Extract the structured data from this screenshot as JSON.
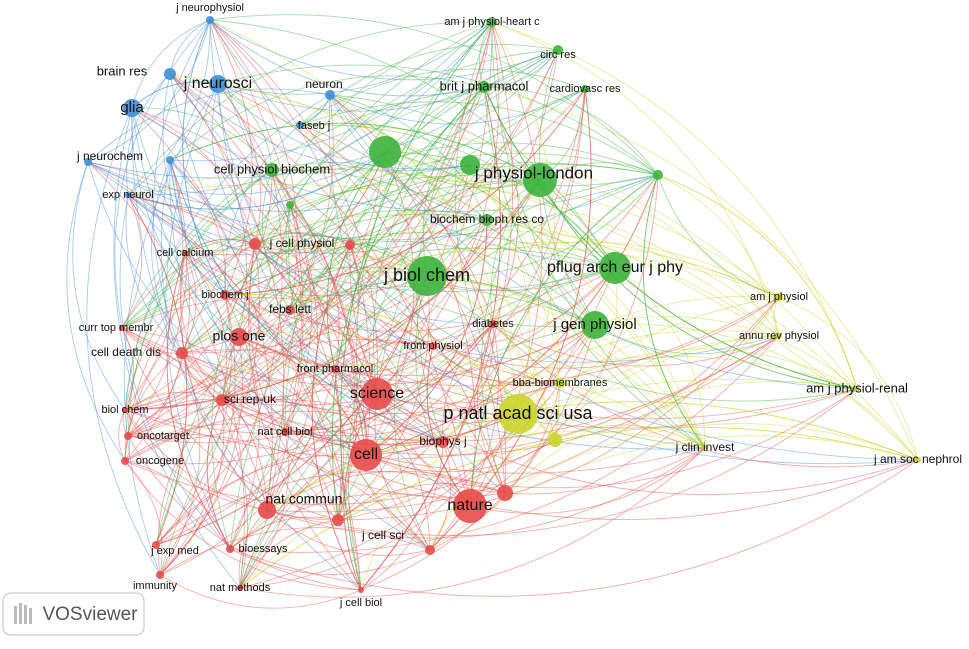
{
  "nodes": [
    {
      "label": "j neurophysiol"
    },
    {
      "label": "am j physiol-heart c"
    },
    {
      "label": "circ res"
    },
    {
      "label": "brain res"
    },
    {
      "label": "j neurosci"
    },
    {
      "label": "neuron"
    },
    {
      "label": "brit j pharmacol"
    },
    {
      "label": "cardiovasc res"
    },
    {
      "label": "glia"
    },
    {
      "label": "faseb j"
    },
    {
      "label": "j neurochem"
    },
    {
      "label": "cell physiol biochem"
    },
    {
      "label": "j physiol-london"
    },
    {
      "label": "exp neurol"
    },
    {
      "label": "biochem bioph res co"
    },
    {
      "label": "cell calcium"
    },
    {
      "label": "j cell physiol"
    },
    {
      "label": "j biol chem"
    },
    {
      "label": "pflug arch eur j phy"
    },
    {
      "label": "biochem j"
    },
    {
      "label": "febs lett"
    },
    {
      "label": "am j physiol"
    },
    {
      "label": "curr top membr"
    },
    {
      "label": "diabetes"
    },
    {
      "label": "j gen physiol"
    },
    {
      "label": "annu rev physiol"
    },
    {
      "label": "plos one"
    },
    {
      "label": "front physiol"
    },
    {
      "label": "cell death dis"
    },
    {
      "label": "front pharmacol"
    },
    {
      "label": "bba-biomembranes"
    },
    {
      "label": "am j physiol-renal"
    },
    {
      "label": "science"
    },
    {
      "label": "p natl acad sci usa"
    },
    {
      "label": "biol chem"
    },
    {
      "label": "sci rep-uk"
    },
    {
      "label": "nat cell biol"
    },
    {
      "label": "oncotarget"
    },
    {
      "label": "biophys j"
    },
    {
      "label": "j clin invest"
    },
    {
      "label": "cell"
    },
    {
      "label": "oncogene"
    },
    {
      "label": "j am soc nephrol"
    },
    {
      "label": "nat commun"
    },
    {
      "label": "nature"
    },
    {
      "label": "j exp med"
    },
    {
      "label": "bioessays"
    },
    {
      "label": "j cell sci"
    },
    {
      "label": "immunity"
    },
    {
      "label": "nat methods"
    },
    {
      "label": "j cell biol"
    }
  ],
  "logo": "VOSviewer"
}
